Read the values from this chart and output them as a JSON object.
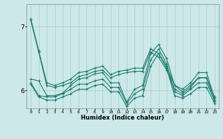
{
  "background_color": "#cce8e8",
  "grid_color": "#aacccc",
  "line_color": "#1a7a6e",
  "x_label": "Humidex (Indice chaleur)",
  "yticks": [
    6,
    7
  ],
  "xlim": [
    -0.5,
    23.5
  ],
  "ylim": [
    5.72,
    7.35
  ],
  "lines": [
    [
      7.12,
      6.62,
      6.12,
      6.08,
      6.12,
      6.18,
      6.28,
      6.3,
      6.35,
      6.38,
      6.25,
      6.3,
      6.32,
      6.35,
      6.35,
      6.65,
      6.58,
      6.38,
      6.08,
      6.02,
      6.12,
      6.28,
      6.28,
      5.88
    ],
    [
      6.18,
      6.15,
      5.92,
      5.92,
      5.96,
      6.08,
      6.18,
      6.2,
      6.26,
      6.28,
      6.12,
      6.12,
      5.82,
      6.02,
      6.08,
      6.58,
      6.72,
      6.5,
      6.08,
      5.98,
      6.08,
      6.2,
      6.2,
      5.9
    ],
    [
      6.12,
      5.92,
      5.9,
      5.9,
      5.95,
      6.02,
      6.1,
      6.1,
      6.15,
      6.18,
      6.05,
      6.05,
      5.8,
      5.95,
      6.02,
      6.48,
      6.65,
      6.42,
      5.98,
      5.92,
      6.02,
      6.12,
      6.12,
      5.85
    ],
    [
      6.1,
      5.9,
      5.85,
      5.85,
      5.9,
      5.95,
      6.02,
      6.02,
      6.08,
      6.1,
      5.98,
      5.98,
      5.75,
      5.88,
      5.92,
      6.38,
      6.58,
      6.35,
      5.92,
      5.88,
      5.95,
      6.05,
      6.05,
      5.8
    ],
    [
      7.1,
      6.6,
      6.08,
      6.05,
      6.08,
      6.12,
      6.22,
      6.25,
      6.3,
      6.32,
      6.2,
      6.25,
      6.28,
      6.3,
      6.3,
      6.6,
      6.52,
      6.32,
      6.02,
      5.95,
      6.05,
      6.2,
      6.2,
      5.83
    ]
  ]
}
